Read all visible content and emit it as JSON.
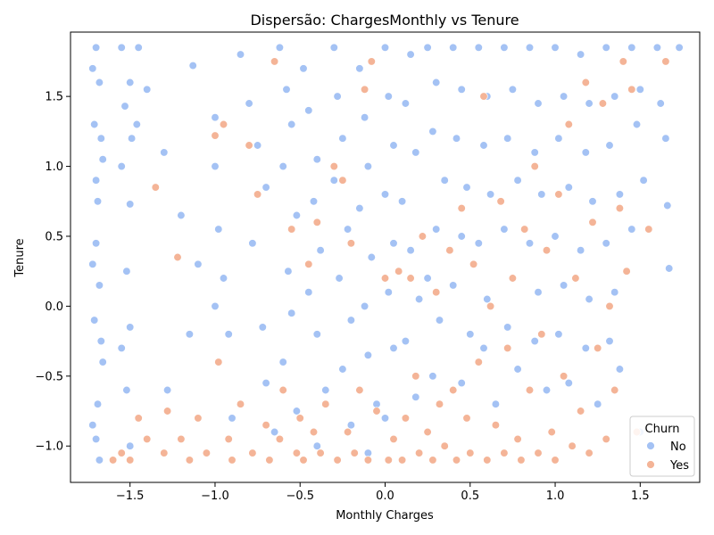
{
  "chart_data": {
    "type": "scatter",
    "title": "Dispersão: ChargesMonthly vs Tenure",
    "xlabel": "Monthly Charges",
    "ylabel": "Tenure",
    "xlim": [
      -1.85,
      1.85
    ],
    "ylim": [
      -1.26,
      1.96
    ],
    "xticks": [
      -1.5,
      -1.0,
      -0.5,
      0.0,
      0.5,
      1.0,
      1.5
    ],
    "xtick_labels": [
      "−1.5",
      "−1.0",
      "−0.5",
      "0.0",
      "0.5",
      "1.0",
      "1.5"
    ],
    "yticks": [
      -1.0,
      -0.5,
      0.0,
      0.5,
      1.0,
      1.5
    ],
    "ytick_labels": [
      "−1.0",
      "−0.5",
      "0.0",
      "0.5",
      "1.0",
      "1.5"
    ],
    "grid": false,
    "legend": {
      "title": "Churn",
      "position": "bottom-right"
    },
    "series": [
      {
        "name": "No",
        "color": "#a4c2f4",
        "points": [
          [
            -1.7,
            1.85
          ],
          [
            -1.68,
            1.6
          ],
          [
            -1.71,
            1.3
          ],
          [
            -1.66,
            1.05
          ],
          [
            -1.69,
            0.75
          ],
          [
            -1.7,
            0.45
          ],
          [
            -1.68,
            0.15
          ],
          [
            -1.71,
            -0.1
          ],
          [
            -1.66,
            -0.4
          ],
          [
            -1.69,
            -0.7
          ],
          [
            -1.7,
            -0.95
          ],
          [
            -1.68,
            -1.1
          ],
          [
            -1.72,
            1.7
          ],
          [
            -1.67,
            1.2
          ],
          [
            -1.7,
            0.9
          ],
          [
            -1.72,
            0.3
          ],
          [
            -1.67,
            -0.25
          ],
          [
            -1.72,
            -0.85
          ],
          [
            -1.55,
            1.85
          ],
          [
            -1.5,
            1.6
          ],
          [
            -1.53,
            1.43
          ],
          [
            -1.49,
            1.2
          ],
          [
            -1.55,
            1.0
          ],
          [
            -1.5,
            0.73
          ],
          [
            -1.52,
            0.25
          ],
          [
            -1.5,
            -0.15
          ],
          [
            -1.52,
            -0.6
          ],
          [
            -1.5,
            -1.0
          ],
          [
            -1.55,
            -0.3
          ],
          [
            -1.45,
            1.85
          ],
          [
            -1.4,
            1.55
          ],
          [
            -1.46,
            1.3
          ],
          [
            -1.3,
            1.1
          ],
          [
            -1.28,
            -0.6
          ],
          [
            -1.2,
            0.65
          ],
          [
            -1.1,
            0.3
          ],
          [
            -1.15,
            -0.2
          ],
          [
            -1.13,
            1.72
          ],
          [
            -1.0,
            1.35
          ],
          [
            -1.0,
            1.0
          ],
          [
            -0.98,
            0.55
          ],
          [
            -0.95,
            0.2
          ],
          [
            -1.0,
            0.0
          ],
          [
            -0.92,
            -0.2
          ],
          [
            -0.9,
            -0.8
          ],
          [
            -0.85,
            1.8
          ],
          [
            -0.8,
            1.45
          ],
          [
            -0.75,
            1.15
          ],
          [
            -0.7,
            0.85
          ],
          [
            -0.78,
            0.45
          ],
          [
            -0.72,
            -0.15
          ],
          [
            -0.7,
            -0.55
          ],
          [
            -0.65,
            -0.9
          ],
          [
            -0.62,
            1.85
          ],
          [
            -0.58,
            1.55
          ],
          [
            -0.55,
            1.3
          ],
          [
            -0.6,
            1.0
          ],
          [
            -0.52,
            0.65
          ],
          [
            -0.57,
            0.25
          ],
          [
            -0.55,
            -0.05
          ],
          [
            -0.6,
            -0.4
          ],
          [
            -0.52,
            -0.75
          ],
          [
            -0.48,
            1.7
          ],
          [
            -0.45,
            1.4
          ],
          [
            -0.4,
            1.05
          ],
          [
            -0.42,
            0.75
          ],
          [
            -0.38,
            0.4
          ],
          [
            -0.45,
            0.1
          ],
          [
            -0.4,
            -0.2
          ],
          [
            -0.35,
            -0.6
          ],
          [
            -0.4,
            -1.0
          ],
          [
            -0.3,
            1.85
          ],
          [
            -0.28,
            1.5
          ],
          [
            -0.25,
            1.2
          ],
          [
            -0.3,
            0.9
          ],
          [
            -0.22,
            0.55
          ],
          [
            -0.27,
            0.2
          ],
          [
            -0.2,
            -0.1
          ],
          [
            -0.25,
            -0.45
          ],
          [
            -0.2,
            -0.85
          ],
          [
            -0.15,
            1.7
          ],
          [
            -0.12,
            1.35
          ],
          [
            -0.1,
            1.0
          ],
          [
            -0.15,
            0.7
          ],
          [
            -0.08,
            0.35
          ],
          [
            -0.12,
            0.0
          ],
          [
            -0.1,
            -0.35
          ],
          [
            -0.05,
            -0.7
          ],
          [
            -0.1,
            -1.05
          ],
          [
            0.0,
            1.85
          ],
          [
            0.02,
            1.5
          ],
          [
            0.05,
            1.15
          ],
          [
            0.0,
            0.8
          ],
          [
            0.05,
            0.45
          ],
          [
            0.02,
            0.1
          ],
          [
            0.05,
            -0.3
          ],
          [
            0.0,
            -0.8
          ],
          [
            0.15,
            1.8
          ],
          [
            0.12,
            1.45
          ],
          [
            0.18,
            1.1
          ],
          [
            0.1,
            0.75
          ],
          [
            0.15,
            0.4
          ],
          [
            0.2,
            0.05
          ],
          [
            0.12,
            -0.25
          ],
          [
            0.18,
            -0.65
          ],
          [
            0.25,
            1.85
          ],
          [
            0.3,
            1.6
          ],
          [
            0.28,
            1.25
          ],
          [
            0.35,
            0.9
          ],
          [
            0.3,
            0.55
          ],
          [
            0.25,
            0.2
          ],
          [
            0.32,
            -0.1
          ],
          [
            0.28,
            -0.5
          ],
          [
            0.4,
            1.85
          ],
          [
            0.45,
            1.55
          ],
          [
            0.42,
            1.2
          ],
          [
            0.48,
            0.85
          ],
          [
            0.45,
            0.5
          ],
          [
            0.4,
            0.15
          ],
          [
            0.5,
            -0.2
          ],
          [
            0.45,
            -0.55
          ],
          [
            0.55,
            1.85
          ],
          [
            0.6,
            1.5
          ],
          [
            0.58,
            1.15
          ],
          [
            0.62,
            0.8
          ],
          [
            0.55,
            0.45
          ],
          [
            0.6,
            0.05
          ],
          [
            0.58,
            -0.3
          ],
          [
            0.65,
            -0.7
          ],
          [
            0.7,
            1.85
          ],
          [
            0.75,
            1.55
          ],
          [
            0.72,
            1.2
          ],
          [
            0.78,
            0.9
          ],
          [
            0.7,
            0.55
          ],
          [
            0.75,
            0.2
          ],
          [
            0.72,
            -0.15
          ],
          [
            0.78,
            -0.45
          ],
          [
            0.85,
            1.85
          ],
          [
            0.9,
            1.45
          ],
          [
            0.88,
            1.1
          ],
          [
            0.92,
            0.8
          ],
          [
            0.85,
            0.45
          ],
          [
            0.9,
            0.1
          ],
          [
            0.88,
            -0.25
          ],
          [
            0.95,
            -0.6
          ],
          [
            1.0,
            1.85
          ],
          [
            1.05,
            1.5
          ],
          [
            1.02,
            1.2
          ],
          [
            1.08,
            0.85
          ],
          [
            1.0,
            0.5
          ],
          [
            1.05,
            0.15
          ],
          [
            1.02,
            -0.2
          ],
          [
            1.08,
            -0.55
          ],
          [
            1.15,
            1.8
          ],
          [
            1.2,
            1.45
          ],
          [
            1.18,
            1.1
          ],
          [
            1.22,
            0.75
          ],
          [
            1.15,
            0.4
          ],
          [
            1.2,
            0.05
          ],
          [
            1.18,
            -0.3
          ],
          [
            1.25,
            -0.7
          ],
          [
            1.3,
            1.85
          ],
          [
            1.35,
            1.5
          ],
          [
            1.32,
            1.15
          ],
          [
            1.38,
            0.8
          ],
          [
            1.3,
            0.45
          ],
          [
            1.35,
            0.1
          ],
          [
            1.32,
            -0.25
          ],
          [
            1.38,
            -0.45
          ],
          [
            1.45,
            1.85
          ],
          [
            1.5,
            1.55
          ],
          [
            1.48,
            1.3
          ],
          [
            1.52,
            0.9
          ],
          [
            1.45,
            0.55
          ],
          [
            1.5,
            -0.9
          ],
          [
            1.6,
            1.85
          ],
          [
            1.62,
            1.45
          ],
          [
            1.65,
            1.2
          ],
          [
            1.66,
            0.72
          ],
          [
            1.67,
            0.27
          ],
          [
            1.73,
            1.85
          ]
        ]
      },
      {
        "name": "Yes",
        "color": "#f4b497",
        "points": [
          [
            -1.6,
            -1.1
          ],
          [
            -1.55,
            -1.05
          ],
          [
            -1.5,
            -1.1
          ],
          [
            -1.45,
            -0.8
          ],
          [
            -1.4,
            -0.95
          ],
          [
            -1.35,
            0.85
          ],
          [
            -1.3,
            -1.05
          ],
          [
            -1.28,
            -0.75
          ],
          [
            -1.22,
            0.35
          ],
          [
            -1.2,
            -0.95
          ],
          [
            -1.15,
            -1.1
          ],
          [
            -1.1,
            -0.8
          ],
          [
            -1.05,
            -1.05
          ],
          [
            -1.0,
            1.22
          ],
          [
            -0.98,
            -0.4
          ],
          [
            -0.95,
            1.3
          ],
          [
            -0.92,
            -0.95
          ],
          [
            -0.9,
            -1.1
          ],
          [
            -0.85,
            -0.7
          ],
          [
            -0.8,
            1.15
          ],
          [
            -0.78,
            -1.05
          ],
          [
            -0.75,
            0.8
          ],
          [
            -0.7,
            -0.85
          ],
          [
            -0.68,
            -1.1
          ],
          [
            -0.65,
            1.75
          ],
          [
            -0.62,
            -0.95
          ],
          [
            -0.6,
            -0.6
          ],
          [
            -0.55,
            0.55
          ],
          [
            -0.52,
            -1.05
          ],
          [
            -0.5,
            -0.8
          ],
          [
            -0.48,
            -1.1
          ],
          [
            -0.45,
            0.3
          ],
          [
            -0.42,
            -0.9
          ],
          [
            -0.4,
            0.6
          ],
          [
            -0.38,
            -1.05
          ],
          [
            -0.35,
            -0.7
          ],
          [
            -0.3,
            1.0
          ],
          [
            -0.28,
            -1.1
          ],
          [
            -0.25,
            0.9
          ],
          [
            -0.22,
            -0.9
          ],
          [
            -0.2,
            0.45
          ],
          [
            -0.18,
            -1.05
          ],
          [
            -0.15,
            -0.6
          ],
          [
            -0.12,
            1.55
          ],
          [
            -0.1,
            -1.1
          ],
          [
            -0.08,
            1.75
          ],
          [
            -0.05,
            -0.75
          ],
          [
            0.0,
            0.2
          ],
          [
            0.02,
            -1.1
          ],
          [
            0.05,
            -0.95
          ],
          [
            0.08,
            0.25
          ],
          [
            0.1,
            -1.1
          ],
          [
            0.12,
            -0.8
          ],
          [
            0.15,
            0.2
          ],
          [
            0.18,
            -0.5
          ],
          [
            0.2,
            -1.05
          ],
          [
            0.22,
            0.5
          ],
          [
            0.25,
            -0.9
          ],
          [
            0.28,
            -1.1
          ],
          [
            0.3,
            0.1
          ],
          [
            0.32,
            -0.7
          ],
          [
            0.35,
            -1.0
          ],
          [
            0.38,
            0.4
          ],
          [
            0.4,
            -0.6
          ],
          [
            0.42,
            -1.1
          ],
          [
            0.45,
            0.7
          ],
          [
            0.48,
            -0.8
          ],
          [
            0.5,
            -1.05
          ],
          [
            0.52,
            0.3
          ],
          [
            0.55,
            -0.4
          ],
          [
            0.58,
            1.5
          ],
          [
            0.6,
            -1.1
          ],
          [
            0.62,
            0.0
          ],
          [
            0.65,
            -0.85
          ],
          [
            0.68,
            0.75
          ],
          [
            0.7,
            -1.05
          ],
          [
            0.72,
            -0.3
          ],
          [
            0.75,
            0.2
          ],
          [
            0.78,
            -0.95
          ],
          [
            0.8,
            -1.1
          ],
          [
            0.82,
            0.55
          ],
          [
            0.85,
            -0.6
          ],
          [
            0.88,
            1.0
          ],
          [
            0.9,
            -1.05
          ],
          [
            0.92,
            -0.2
          ],
          [
            0.95,
            0.4
          ],
          [
            0.98,
            -0.9
          ],
          [
            1.0,
            -1.1
          ],
          [
            1.02,
            0.8
          ],
          [
            1.05,
            -0.5
          ],
          [
            1.08,
            1.3
          ],
          [
            1.1,
            -1.0
          ],
          [
            1.12,
            0.2
          ],
          [
            1.15,
            -0.75
          ],
          [
            1.18,
            1.6
          ],
          [
            1.2,
            -1.05
          ],
          [
            1.22,
            0.6
          ],
          [
            1.25,
            -0.3
          ],
          [
            1.28,
            1.45
          ],
          [
            1.3,
            -0.95
          ],
          [
            1.32,
            0.0
          ],
          [
            1.35,
            -0.6
          ],
          [
            1.38,
            0.7
          ],
          [
            1.4,
            1.75
          ],
          [
            1.42,
            0.25
          ],
          [
            1.45,
            1.55
          ],
          [
            1.48,
            -0.9
          ],
          [
            1.55,
            0.55
          ],
          [
            1.65,
            1.75
          ]
        ]
      }
    ]
  }
}
